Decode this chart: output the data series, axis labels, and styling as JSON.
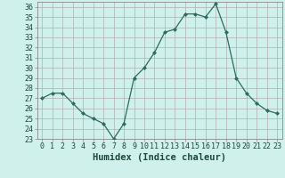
{
  "x": [
    0,
    1,
    2,
    3,
    4,
    5,
    6,
    7,
    8,
    9,
    10,
    11,
    12,
    13,
    14,
    15,
    16,
    17,
    18,
    19,
    20,
    21,
    22,
    23
  ],
  "y": [
    27.0,
    27.5,
    27.5,
    26.5,
    25.5,
    25.0,
    24.5,
    23.0,
    24.5,
    29.0,
    30.0,
    31.5,
    33.5,
    33.8,
    35.3,
    35.3,
    35.0,
    36.3,
    33.5,
    29.0,
    27.5,
    26.5,
    25.8,
    25.5
  ],
  "line_color": "#2d6b5e",
  "marker": "D",
  "marker_size": 2.0,
  "bg_color": "#cff0eb",
  "grid_major_color": "#b0b0b0",
  "grid_minor_color": "#d0d0d0",
  "xlabel": "Humidex (Indice chaleur)",
  "xlim": [
    -0.5,
    23.5
  ],
  "ylim": [
    23,
    36.5
  ],
  "yticks": [
    23,
    24,
    25,
    26,
    27,
    28,
    29,
    30,
    31,
    32,
    33,
    34,
    35,
    36
  ],
  "xticks": [
    0,
    1,
    2,
    3,
    4,
    5,
    6,
    7,
    8,
    9,
    10,
    11,
    12,
    13,
    14,
    15,
    16,
    17,
    18,
    19,
    20,
    21,
    22,
    23
  ],
  "xlabel_fontsize": 7.5,
  "tick_fontsize": 6.0,
  "label_color": "#1a4a3a",
  "spine_color": "#888888"
}
